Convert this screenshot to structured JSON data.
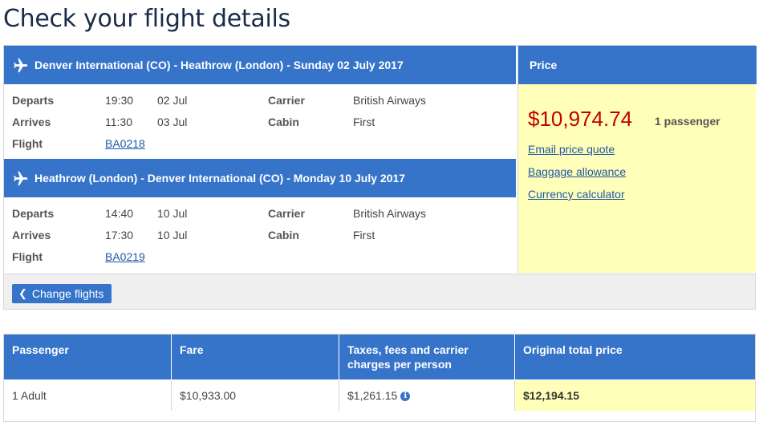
{
  "page": {
    "title": "Check your flight details"
  },
  "outbound": {
    "header": "Denver International (CO) - Heathrow (London) - Sunday 02 July 2017",
    "departs_label": "Departs",
    "departs_time": "19:30",
    "departs_date": "02 Jul",
    "arrives_label": "Arrives",
    "arrives_time": "11:30",
    "arrives_date": "03 Jul",
    "flight_label": "Flight",
    "flight_number": "BA0218",
    "carrier_label": "Carrier",
    "carrier": "British Airways",
    "cabin_label": "Cabin",
    "cabin": "First"
  },
  "inbound": {
    "header": "Heathrow (London) - Denver International (CO) - Monday 10 July 2017",
    "departs_label": "Departs",
    "departs_time": "14:40",
    "departs_date": "10 Jul",
    "arrives_label": "Arrives",
    "arrives_time": "17:30",
    "arrives_date": "10 Jul",
    "flight_label": "Flight",
    "flight_number": "BA0219",
    "carrier_label": "Carrier",
    "carrier": "British Airways",
    "cabin_label": "Cabin",
    "cabin": "First"
  },
  "price": {
    "header": "Price",
    "amount": "$10,974.74",
    "passengers": "1 passenger",
    "links": [
      "Email price quote",
      "Baggage allowance",
      "Currency calculator"
    ]
  },
  "actions": {
    "change_flights": "Change flights"
  },
  "fare_table": {
    "headers": [
      "Passenger",
      "Fare",
      "Taxes, fees and carrier charges per person",
      "Original total price"
    ],
    "row": {
      "passenger": "1 Adult",
      "fare": "$10,933.00",
      "taxes": "$1,261.15",
      "total": "$12,194.15"
    }
  },
  "colors": {
    "header_blue": "#3674ca",
    "price_bg": "#ffffb9",
    "price_red": "#c00000",
    "link_blue": "#1f57a4"
  }
}
